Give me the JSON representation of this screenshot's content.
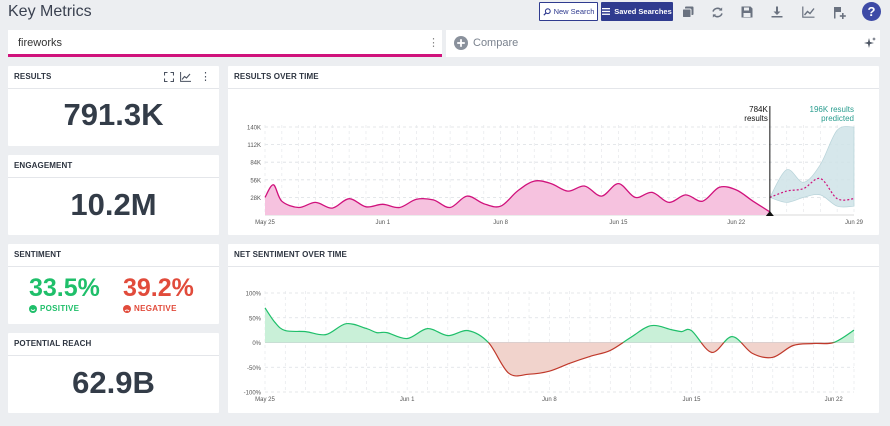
{
  "header": {
    "title": "Key Metrics",
    "new_search": "New Search",
    "saved_searches": "Saved Searches"
  },
  "search": {
    "query": "fireworks",
    "compare": "Compare"
  },
  "cards": {
    "results": {
      "title": "RESULTS",
      "value": "791.3K"
    },
    "engagement": {
      "title": "ENGAGEMENT",
      "value": "10.2M"
    },
    "sentiment": {
      "title": "SENTIMENT",
      "positive_pct": "33.5%",
      "positive_label": "POSITIVE",
      "negative_pct": "39.2%",
      "negative_label": "NEGATIVE"
    },
    "reach": {
      "title": "POTENTIAL REACH",
      "value": "62.9B"
    }
  },
  "colors": {
    "brand": "#2f3b8f",
    "accent": "#d0127c",
    "positive": "#1fbf6a",
    "negative": "#e14b3b",
    "predicted": "#2a9d8f"
  },
  "icons": {
    "toolbar": [
      "copy-icon",
      "refresh-icon",
      "save-icon",
      "download-icon",
      "trend-icon",
      "add-panel-icon",
      "help-icon"
    ]
  },
  "chart_data": [
    {
      "type": "area",
      "title": "RESULTS OVER TIME",
      "x_ticks": [
        "May 25",
        "Jun 1",
        "Jun 8",
        "Jun 15",
        "Jun 22",
        "Jun 29"
      ],
      "y_ticks": [
        "140K",
        "112K",
        "84K",
        "56K",
        "28K"
      ],
      "ylim": [
        0,
        140000
      ],
      "xlim": [
        0,
        35
      ],
      "grid": true,
      "marker": {
        "value": "784K",
        "label": "results"
      },
      "predicted": {
        "value": "196K results",
        "label": "predicted"
      },
      "series": [
        {
          "name": "results",
          "x": [
            0,
            0.5,
            1,
            2,
            3,
            4,
            5,
            6,
            7,
            8,
            9,
            10,
            11,
            12,
            13,
            14,
            15,
            16,
            17,
            18,
            19,
            20,
            21,
            22,
            23,
            24,
            25,
            26,
            27,
            28,
            29,
            30
          ],
          "values": [
            28000,
            48000,
            22000,
            12000,
            20000,
            11000,
            26000,
            13000,
            17000,
            12000,
            25000,
            24000,
            12000,
            30000,
            18000,
            14000,
            38000,
            54000,
            50000,
            38000,
            46000,
            30000,
            50000,
            28000,
            36000,
            20000,
            32000,
            22000,
            44000,
            40000,
            22000,
            5000
          ]
        },
        {
          "name": "predicted",
          "x": [
            30,
            31,
            32,
            33,
            34,
            35
          ],
          "values": [
            28000,
            38000,
            42000,
            58000,
            26000,
            26000
          ],
          "upper": [
            28000,
            72000,
            52000,
            80000,
            135000,
            140000
          ],
          "lower": [
            28000,
            20000,
            28000,
            32000,
            14000,
            14000
          ]
        }
      ]
    },
    {
      "type": "area",
      "title": "NET SENTIMENT OVER TIME",
      "x_ticks": [
        "May 25",
        "Jun 1",
        "Jun 8",
        "Jun 15",
        "Jun 22"
      ],
      "y_ticks": [
        "100%",
        "50%",
        "0%",
        "-50%",
        "-100%"
      ],
      "ylim": [
        -100,
        100
      ],
      "xlim": [
        0,
        29
      ],
      "grid": true,
      "series": [
        {
          "name": "net sentiment",
          "x": [
            0,
            0.5,
            1,
            2,
            3,
            4,
            5,
            5.5,
            6,
            7,
            8,
            9,
            10,
            11,
            12,
            13,
            14,
            15,
            16,
            17,
            18,
            19,
            20,
            20.5,
            21,
            22,
            23,
            24,
            25,
            26,
            27,
            28,
            29
          ],
          "values": [
            70,
            40,
            24,
            22,
            16,
            38,
            28,
            20,
            20,
            8,
            28,
            14,
            24,
            0,
            -62,
            -64,
            -58,
            -42,
            -28,
            -16,
            10,
            34,
            26,
            22,
            24,
            -20,
            12,
            -22,
            -30,
            -6,
            -2,
            0,
            25
          ]
        }
      ]
    }
  ]
}
